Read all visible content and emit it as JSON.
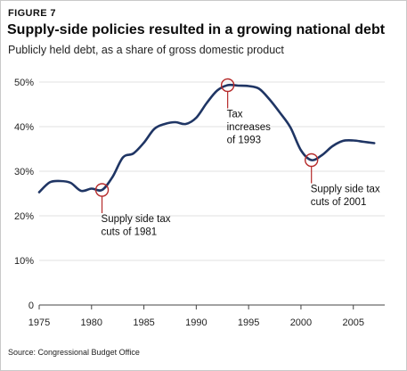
{
  "figure_label": "FIGURE 7",
  "title": "Supply-side policies resulted in a growing national debt",
  "subtitle": "Publicly held debt, as a share of gross domestic product",
  "source": "Source: Congressional Budget Office",
  "colors": {
    "line": "#1f3564",
    "marker": "#b52a2a",
    "grid": "#d8d8d8",
    "axis": "#444444"
  },
  "chart_data": {
    "type": "line",
    "title": "Supply-side policies resulted in a growing national debt",
    "subtitle": "Publicly held debt, as a share of gross domestic product",
    "xlim": [
      1975,
      2008
    ],
    "ylim": [
      0,
      50
    ],
    "x_ticks": [
      1975,
      1980,
      1985,
      1990,
      1995,
      2000,
      2005
    ],
    "x_tick_labels": [
      "1975",
      "1980",
      "1985",
      "1990",
      "1995",
      "2000",
      "2005"
    ],
    "y_ticks": [
      0,
      10,
      20,
      30,
      40,
      50
    ],
    "y_tick_labels": [
      "0",
      "10%",
      "20%",
      "30%",
      "40%",
      "50%"
    ],
    "grid": "horizontal",
    "series": [
      {
        "x": [
          1975,
          1976,
          1977,
          1978,
          1979,
          1980,
          1981,
          1982,
          1983,
          1984,
          1985,
          1986,
          1987,
          1988,
          1989,
          1990,
          1991,
          1992,
          1993,
          1994,
          1995,
          1996,
          1997,
          1998,
          1999,
          2000,
          2001,
          2002,
          2003,
          2004,
          2005,
          2006,
          2007
        ],
        "y": [
          25.3,
          27.5,
          27.8,
          27.4,
          25.6,
          26.1,
          25.8,
          28.7,
          33.1,
          34.0,
          36.4,
          39.5,
          40.6,
          41.0,
          40.6,
          42.0,
          45.3,
          48.1,
          49.3,
          49.2,
          49.1,
          48.5,
          46.1,
          43.1,
          39.8,
          34.7,
          32.5,
          33.6,
          35.6,
          36.8,
          36.9,
          36.6,
          36.3
        ]
      }
    ],
    "annotations": [
      {
        "x": 1981,
        "y": 25.8,
        "lines": [
          "Supply side tax",
          "cuts of 1981"
        ]
      },
      {
        "x": 1993,
        "y": 49.3,
        "lines": [
          "Tax",
          "increases",
          "of 1993"
        ]
      },
      {
        "x": 2001,
        "y": 32.5,
        "lines": [
          "Supply side tax",
          "cuts of 2001"
        ]
      }
    ]
  }
}
